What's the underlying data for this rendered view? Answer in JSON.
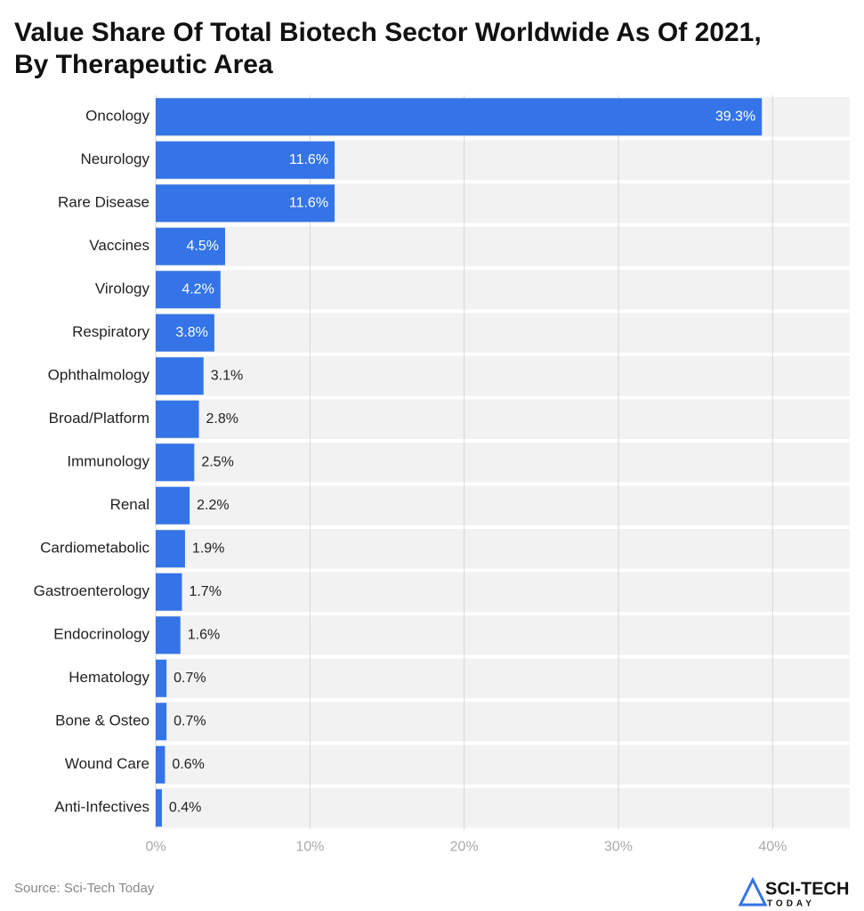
{
  "chart_data": {
    "type": "bar",
    "orientation": "horizontal",
    "title": "Value Share Of Total Biotech Sector Worldwide As Of 2021, By Therapeutic Area",
    "categories": [
      "Oncology",
      "Neurology",
      "Rare Disease",
      "Vaccines",
      "Virology",
      "Respiratory",
      "Ophthalmology",
      "Broad/Platform",
      "Immunology",
      "Renal",
      "Cardiometabolic",
      "Gastroenterology",
      "Endocrinology",
      "Hematology",
      "Bone & Osteo",
      "Wound Care",
      "Anti-Infectives"
    ],
    "values": [
      39.3,
      11.6,
      11.6,
      4.5,
      4.2,
      3.8,
      3.1,
      2.8,
      2.5,
      2.2,
      1.9,
      1.7,
      1.6,
      0.7,
      0.7,
      0.6,
      0.4
    ],
    "value_labels": [
      "39.3%",
      "11.6%",
      "11.6%",
      "4.5%",
      "4.2%",
      "3.8%",
      "3.1%",
      "2.8%",
      "2.5%",
      "2.2%",
      "1.9%",
      "1.7%",
      "1.6%",
      "0.7%",
      "0.7%",
      "0.6%",
      "0.4%"
    ],
    "color": "#3474e8",
    "xlim": [
      0,
      45
    ],
    "xticks": [
      {
        "value": 0,
        "label": "0%"
      },
      {
        "value": 10,
        "label": "10%"
      },
      {
        "value": 20,
        "label": "20%"
      },
      {
        "value": 30,
        "label": "30%"
      },
      {
        "value": 40,
        "label": "40%"
      }
    ],
    "grid": true,
    "source": "Source: Sci-Tech Today",
    "logo": {
      "line1": "SCI-TECH",
      "line2": "TODAY"
    }
  }
}
